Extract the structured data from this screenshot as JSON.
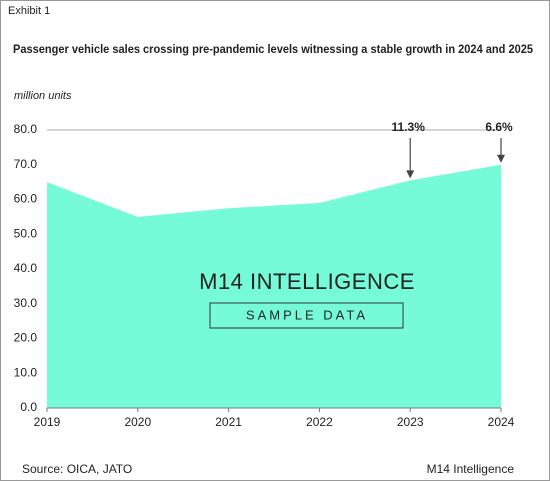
{
  "exhibit": "Exhibit 1",
  "chart_data": {
    "type": "area",
    "title": "Passenger vehicle sales crossing pre-pandemic levels witnessing a stable growth in 2024 and 2025",
    "y_label": "million units",
    "categories": [
      "2019",
      "2020",
      "2021",
      "2022",
      "2023",
      "2024"
    ],
    "values": [
      65,
      55,
      57.5,
      59,
      65.5,
      70
    ],
    "color": "#76fbd9",
    "ylim": [
      0,
      80
    ],
    "yticks": [
      {
        "value": 0,
        "label": "0.0"
      },
      {
        "value": 10,
        "label": "10.0"
      },
      {
        "value": 20,
        "label": "20.0"
      },
      {
        "value": 30,
        "label": "30.0"
      },
      {
        "value": 40,
        "label": "40.0"
      },
      {
        "value": 50,
        "label": "50.0"
      },
      {
        "value": 60,
        "label": "60.0"
      },
      {
        "value": 70,
        "label": "70.0"
      },
      {
        "value": 80,
        "label": "80.0"
      }
    ],
    "annotations": [
      {
        "text": "11.3%",
        "x": "2023"
      },
      {
        "text": "6.6%",
        "x": "2024"
      }
    ],
    "watermark": {
      "brand": "M14 INTELLIGENCE",
      "stamp": "SAMPLE DATA"
    }
  },
  "footer": {
    "source": "Source: OICA, JATO",
    "brand": "M14 Intelligence"
  }
}
